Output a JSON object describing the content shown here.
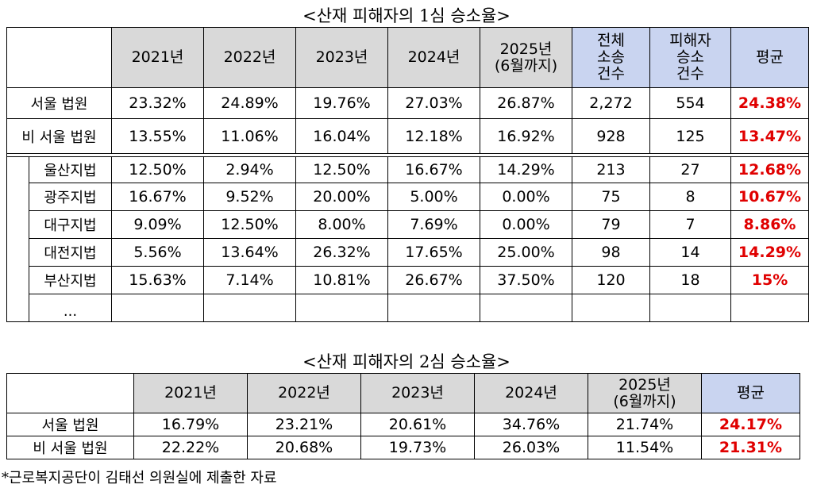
{
  "table1": {
    "title": "<산재 피해자의 1심 승소율>",
    "headers": [
      "2021년",
      "2022년",
      "2023년",
      "2024년",
      "2025년\n(6월까지)",
      "전체\n소송\n건수",
      "피해자\n승소\n건수",
      "평균"
    ],
    "rows": [
      {
        "label": "서울 법원",
        "values": [
          "23.32%",
          "24.89%",
          "19.76%",
          "27.03%",
          "26.87%",
          "2,272",
          "554"
        ],
        "avg": "24.38%"
      },
      {
        "label": "비 서울 법원",
        "values": [
          "13.55%",
          "11.06%",
          "16.04%",
          "12.18%",
          "16.92%",
          "928",
          "125"
        ],
        "avg": "13.47%"
      }
    ],
    "subrows": [
      {
        "label": "울산지법",
        "values": [
          "12.50%",
          "2.94%",
          "12.50%",
          "16.67%",
          "14.29%",
          "213",
          "27"
        ],
        "avg": "12.68%"
      },
      {
        "label": "광주지법",
        "values": [
          "16.67%",
          "9.52%",
          "20.00%",
          "5.00%",
          "0.00%",
          "75",
          "8"
        ],
        "avg": "10.67%"
      },
      {
        "label": "대구지법",
        "values": [
          "9.09%",
          "12.50%",
          "8.00%",
          "7.69%",
          "0.00%",
          "79",
          "7"
        ],
        "avg": "8.86%"
      },
      {
        "label": "대전지법",
        "values": [
          "5.56%",
          "13.64%",
          "26.32%",
          "17.65%",
          "25.00%",
          "98",
          "14"
        ],
        "avg": "14.29%"
      },
      {
        "label": "부산지법",
        "values": [
          "15.63%",
          "7.14%",
          "10.81%",
          "26.67%",
          "37.50%",
          "120",
          "18"
        ],
        "avg": "15%"
      },
      {
        "label": "...",
        "values": [
          "",
          "",
          "",
          "",
          "",
          "",
          ""
        ],
        "avg": ""
      }
    ]
  },
  "table2": {
    "title": "<산재 피해자의 2심 승소율>",
    "headers": [
      "2021년",
      "2022년",
      "2023년",
      "2024년",
      "2025년\n(6월까지)",
      "평균"
    ],
    "rows": [
      {
        "label": "서울 법원",
        "values": [
          "16.79%",
          "23.21%",
          "20.61%",
          "34.76%",
          "21.74%"
        ],
        "avg": "24.17%"
      },
      {
        "label": "비 서울 법원",
        "values": [
          "22.22%",
          "20.68%",
          "19.73%",
          "26.03%",
          "11.54%"
        ],
        "avg": "21.31%"
      }
    ]
  },
  "source": "*근로복지공단이 김태선 의원실에 제출한 자료",
  "colors": {
    "header_gray": "#d9d9d9",
    "header_blue": "#c9d4f0",
    "avg_red": "#e00000"
  }
}
